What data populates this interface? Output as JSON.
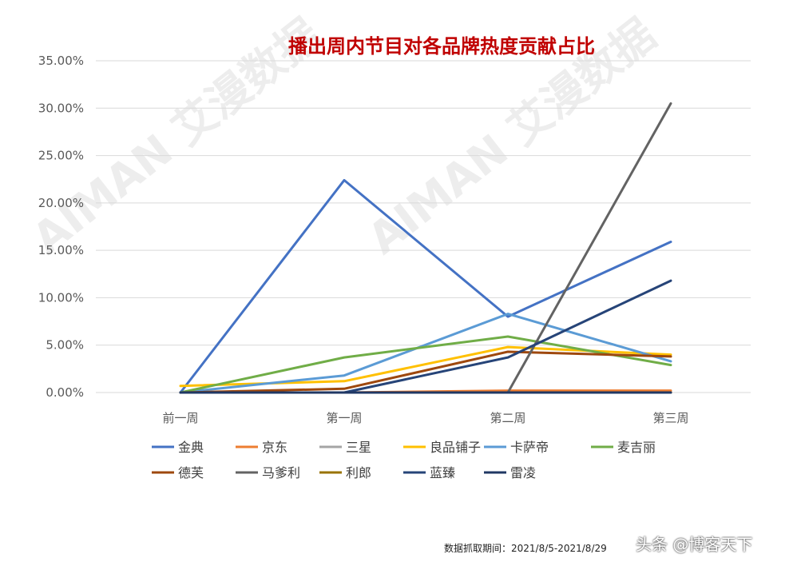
{
  "chart_data": {
    "type": "line",
    "title": "播出周内节目对各品牌热度贡献占比",
    "categories": [
      "前一周",
      "第一周",
      "第二周",
      "第三周"
    ],
    "y_ticks": [
      "0.00%",
      "5.00%",
      "10.00%",
      "15.00%",
      "20.00%",
      "25.00%",
      "30.00%",
      "35.00%"
    ],
    "ylim": [
      0,
      35
    ],
    "grid": "horizontal",
    "legend_position": "bottom",
    "series": [
      {
        "name": "金典",
        "color": "#4472C4",
        "values": [
          0.0,
          22.4,
          8.0,
          15.9
        ]
      },
      {
        "name": "京东",
        "color": "#ED7D31",
        "values": [
          0.0,
          0.0,
          0.2,
          0.2
        ]
      },
      {
        "name": "三星",
        "color": "#A5A5A5",
        "values": [
          0.0,
          0.0,
          0.0,
          0.0
        ]
      },
      {
        "name": "良品铺子",
        "color": "#FFC000",
        "values": [
          0.7,
          1.2,
          4.8,
          4.0
        ]
      },
      {
        "name": "卡萨帝",
        "color": "#5B9BD5",
        "values": [
          0.0,
          1.8,
          8.3,
          3.3
        ]
      },
      {
        "name": "麦吉丽",
        "color": "#70AD47",
        "values": [
          0.0,
          3.7,
          5.9,
          2.9
        ]
      },
      {
        "name": "德芙",
        "color": "#9E480E",
        "values": [
          0.0,
          0.4,
          4.3,
          3.8
        ]
      },
      {
        "name": "马爹利",
        "color": "#636363",
        "values": [
          0.0,
          0.0,
          0.0,
          30.5
        ]
      },
      {
        "name": "利郎",
        "color": "#997300",
        "values": [
          0.0,
          0.0,
          0.0,
          0.0
        ]
      },
      {
        "name": "蓝臻",
        "color": "#264478",
        "values": [
          0.0,
          0.0,
          3.7,
          11.8
        ]
      },
      {
        "name": "雷凌",
        "color": "#203864",
        "values": [
          0.0,
          0.0,
          0.0,
          0.0
        ]
      }
    ]
  },
  "colors": {
    "title": "#C00000",
    "grid": "#D9D9D9",
    "axis_text": "#595959"
  },
  "footer": {
    "date_range": "数据抓取期间：2021/8/5-2021/8/29",
    "watermark_text": "头条 @博客天下",
    "watermark_logo": "AIMAN 艾漫数据"
  },
  "background_watermark": "AIMAN 艾漫数据"
}
